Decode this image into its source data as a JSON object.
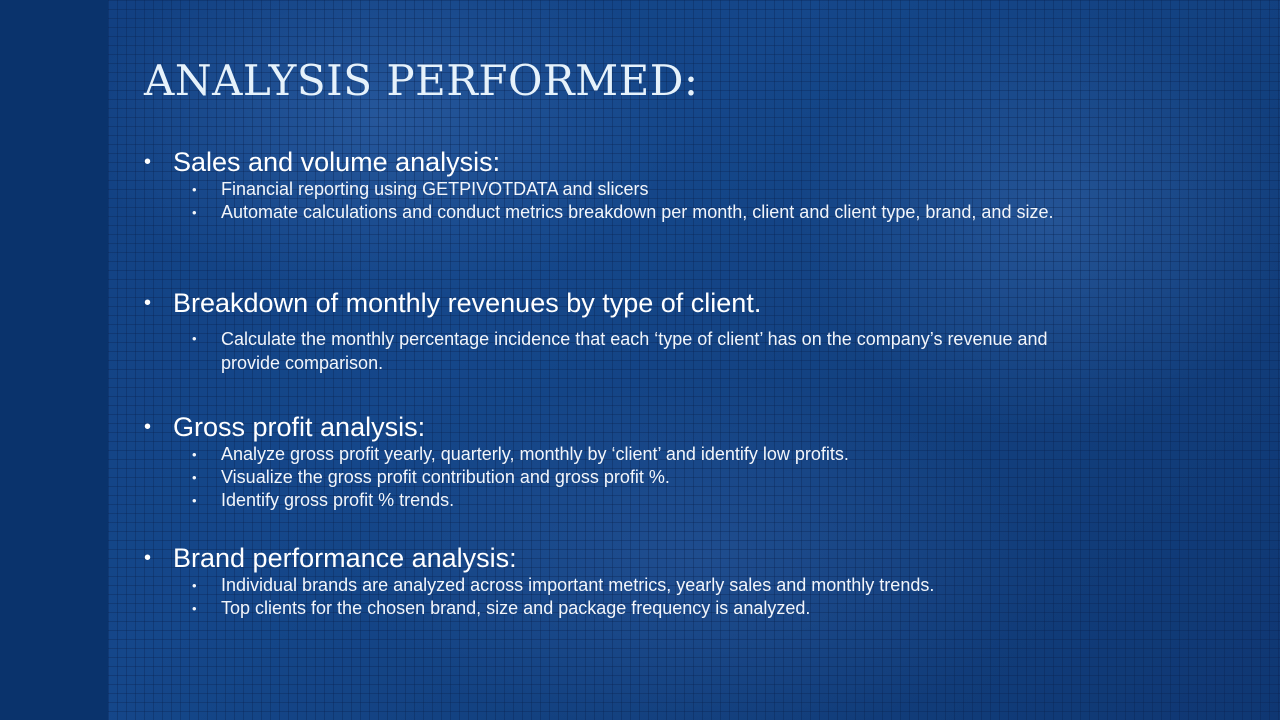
{
  "slide": {
    "title": "ANALYSIS PERFORMED:",
    "bullet_l1": "•",
    "bullet_l2": "•",
    "sections": [
      {
        "heading": "Sales and volume analysis:",
        "items": [
          "Financial reporting using GETPIVOTDATA and slicers",
          "Automate calculations and conduct metrics breakdown per month, client and client type, brand, and size."
        ]
      },
      {
        "heading": "Breakdown of monthly revenues by type of client.",
        "items": [
          "Calculate the monthly percentage incidence that each ‘type of client’ has on the company’s revenue and provide comparison."
        ]
      },
      {
        "heading": "Gross profit analysis:",
        "items": [
          "Analyze gross profit yearly, quarterly, monthly by ‘client’ and identify low profits.",
          "Visualize the gross profit contribution and gross profit %.",
          "Identify gross profit % trends."
        ]
      },
      {
        "heading": "Brand performance analysis:",
        "items": [
          "Individual brands are analyzed across important metrics, yearly sales and monthly trends.",
          "Top clients for the chosen brand, size and package frequency is analyzed."
        ]
      }
    ]
  }
}
